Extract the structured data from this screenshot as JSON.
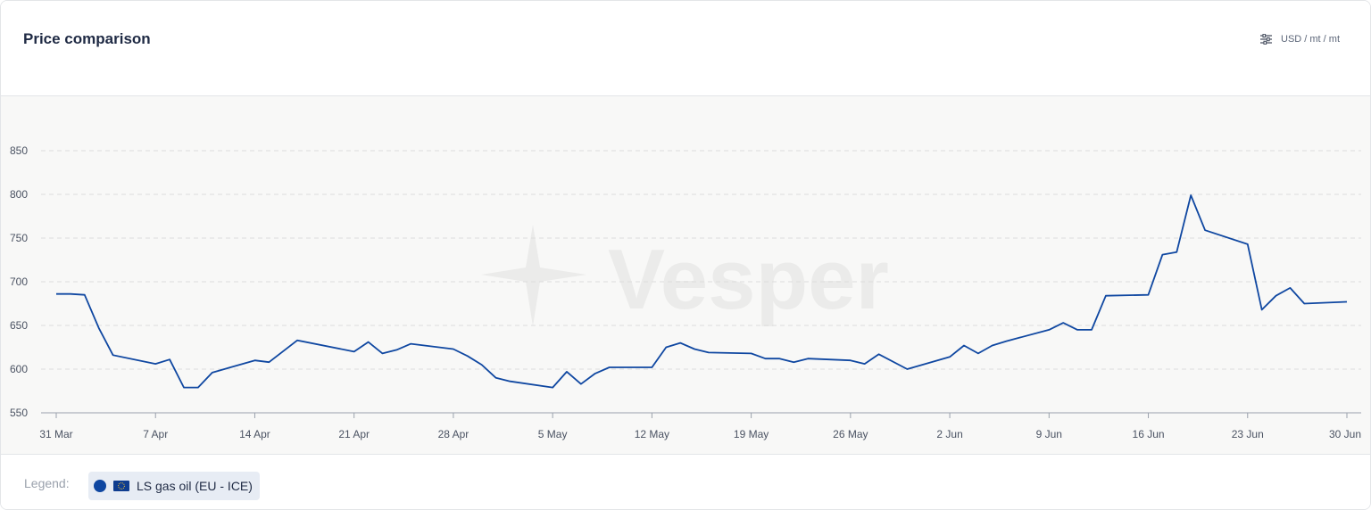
{
  "header": {
    "title": "Price comparison",
    "units_label": "USD / mt / mt",
    "settings_icon": "sliders-icon"
  },
  "watermark_text": "Vesper",
  "legend": {
    "label": "Legend:",
    "items": [
      {
        "name": "LS gas oil (EU - ICE)",
        "color": "#0f47a1",
        "flag_icon": "eu-flag-icon"
      }
    ]
  },
  "colors": {
    "line": "#0f47a1",
    "grid": "#dcdcdc",
    "axis": "#4a5262",
    "plot_bg": "#f8f8f7"
  },
  "chart_data": {
    "type": "line",
    "title": "Price comparison",
    "xlabel": "",
    "ylabel": "",
    "ylim": [
      550,
      870
    ],
    "yticks": [
      550,
      600,
      650,
      700,
      750,
      800,
      850
    ],
    "grid": true,
    "x_start_date": "2025-03-31",
    "x_end_date": "2025-06-30",
    "xticks": [
      {
        "date": "2025-03-31",
        "label": "31 Mar"
      },
      {
        "date": "2025-04-07",
        "label": "7 Apr"
      },
      {
        "date": "2025-04-14",
        "label": "14 Apr"
      },
      {
        "date": "2025-04-21",
        "label": "21 Apr"
      },
      {
        "date": "2025-04-28",
        "label": "28 Apr"
      },
      {
        "date": "2025-05-05",
        "label": "5 May"
      },
      {
        "date": "2025-05-12",
        "label": "12 May"
      },
      {
        "date": "2025-05-19",
        "label": "19 May"
      },
      {
        "date": "2025-05-26",
        "label": "26 May"
      },
      {
        "date": "2025-06-02",
        "label": "2 Jun"
      },
      {
        "date": "2025-06-09",
        "label": "9 Jun"
      },
      {
        "date": "2025-06-16",
        "label": "16 Jun"
      },
      {
        "date": "2025-06-23",
        "label": "23 Jun"
      },
      {
        "date": "2025-06-30",
        "label": "30 Jun"
      }
    ],
    "series": [
      {
        "name": "LS gas oil (EU - ICE)",
        "points": [
          {
            "x": "2025-03-31",
            "y": 686
          },
          {
            "x": "2025-04-01",
            "y": 686
          },
          {
            "x": "2025-04-02",
            "y": 685
          },
          {
            "x": "2025-04-03",
            "y": 647
          },
          {
            "x": "2025-04-04",
            "y": 616
          },
          {
            "x": "2025-04-07",
            "y": 606
          },
          {
            "x": "2025-04-08",
            "y": 611
          },
          {
            "x": "2025-04-09",
            "y": 579
          },
          {
            "x": "2025-04-10",
            "y": 579
          },
          {
            "x": "2025-04-11",
            "y": 596
          },
          {
            "x": "2025-04-14",
            "y": 610
          },
          {
            "x": "2025-04-15",
            "y": 608
          },
          {
            "x": "2025-04-17",
            "y": 633
          },
          {
            "x": "2025-04-21",
            "y": 620
          },
          {
            "x": "2025-04-22",
            "y": 631
          },
          {
            "x": "2025-04-23",
            "y": 618
          },
          {
            "x": "2025-04-24",
            "y": 622
          },
          {
            "x": "2025-04-25",
            "y": 629
          },
          {
            "x": "2025-04-28",
            "y": 623
          },
          {
            "x": "2025-04-29",
            "y": 615
          },
          {
            "x": "2025-04-30",
            "y": 605
          },
          {
            "x": "2025-05-01",
            "y": 590
          },
          {
            "x": "2025-05-02",
            "y": 586
          },
          {
            "x": "2025-05-05",
            "y": 579
          },
          {
            "x": "2025-05-06",
            "y": 597
          },
          {
            "x": "2025-05-07",
            "y": 583
          },
          {
            "x": "2025-05-08",
            "y": 595
          },
          {
            "x": "2025-05-09",
            "y": 602
          },
          {
            "x": "2025-05-12",
            "y": 602
          },
          {
            "x": "2025-05-13",
            "y": 625
          },
          {
            "x": "2025-05-14",
            "y": 630
          },
          {
            "x": "2025-05-15",
            "y": 623
          },
          {
            "x": "2025-05-16",
            "y": 619
          },
          {
            "x": "2025-05-19",
            "y": 618
          },
          {
            "x": "2025-05-20",
            "y": 612
          },
          {
            "x": "2025-05-21",
            "y": 612
          },
          {
            "x": "2025-05-22",
            "y": 608
          },
          {
            "x": "2025-05-23",
            "y": 612
          },
          {
            "x": "2025-05-26",
            "y": 610
          },
          {
            "x": "2025-05-27",
            "y": 606
          },
          {
            "x": "2025-05-28",
            "y": 617
          },
          {
            "x": "2025-05-30",
            "y": 600
          },
          {
            "x": "2025-06-02",
            "y": 614
          },
          {
            "x": "2025-06-03",
            "y": 627
          },
          {
            "x": "2025-06-04",
            "y": 618
          },
          {
            "x": "2025-06-05",
            "y": 627
          },
          {
            "x": "2025-06-06",
            "y": 632
          },
          {
            "x": "2025-06-09",
            "y": 645
          },
          {
            "x": "2025-06-10",
            "y": 653
          },
          {
            "x": "2025-06-11",
            "y": 645
          },
          {
            "x": "2025-06-12",
            "y": 645
          },
          {
            "x": "2025-06-13",
            "y": 684
          },
          {
            "x": "2025-06-16",
            "y": 685
          },
          {
            "x": "2025-06-17",
            "y": 731
          },
          {
            "x": "2025-06-18",
            "y": 734
          },
          {
            "x": "2025-06-19",
            "y": 799
          },
          {
            "x": "2025-06-20",
            "y": 759
          },
          {
            "x": "2025-06-23",
            "y": 743
          },
          {
            "x": "2025-06-24",
            "y": 668
          },
          {
            "x": "2025-06-25",
            "y": 684
          },
          {
            "x": "2025-06-26",
            "y": 693
          },
          {
            "x": "2025-06-27",
            "y": 675
          },
          {
            "x": "2025-06-30",
            "y": 677
          }
        ]
      }
    ]
  }
}
